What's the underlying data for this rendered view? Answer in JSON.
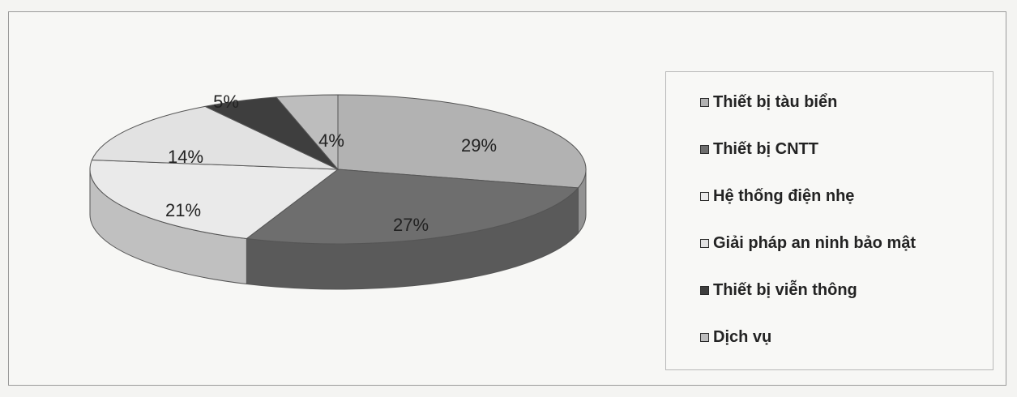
{
  "chart_data": {
    "type": "pie",
    "title": "",
    "slices": [
      {
        "label": "Thiết bị tàu biển",
        "value": 29,
        "display": "29%",
        "color": "#b2b2b2"
      },
      {
        "label": "Thiết bị CNTT",
        "value": 27,
        "display": "27%",
        "color": "#6e6e6e"
      },
      {
        "label": "Hệ thống điện nhẹ",
        "value": 21,
        "display": "21%",
        "color": "#eaeaea"
      },
      {
        "label": "Giải pháp an ninh bảo mật",
        "value": 14,
        "display": "14%",
        "color": "#e2e2e2"
      },
      {
        "label": "Thiết bị viễn thông",
        "value": 5,
        "display": "5%",
        "color": "#3e3e3e"
      },
      {
        "label": "Dịch vụ",
        "value": 4,
        "display": "4%",
        "color": "#bdbdbd"
      }
    ],
    "legend_position": "right"
  }
}
